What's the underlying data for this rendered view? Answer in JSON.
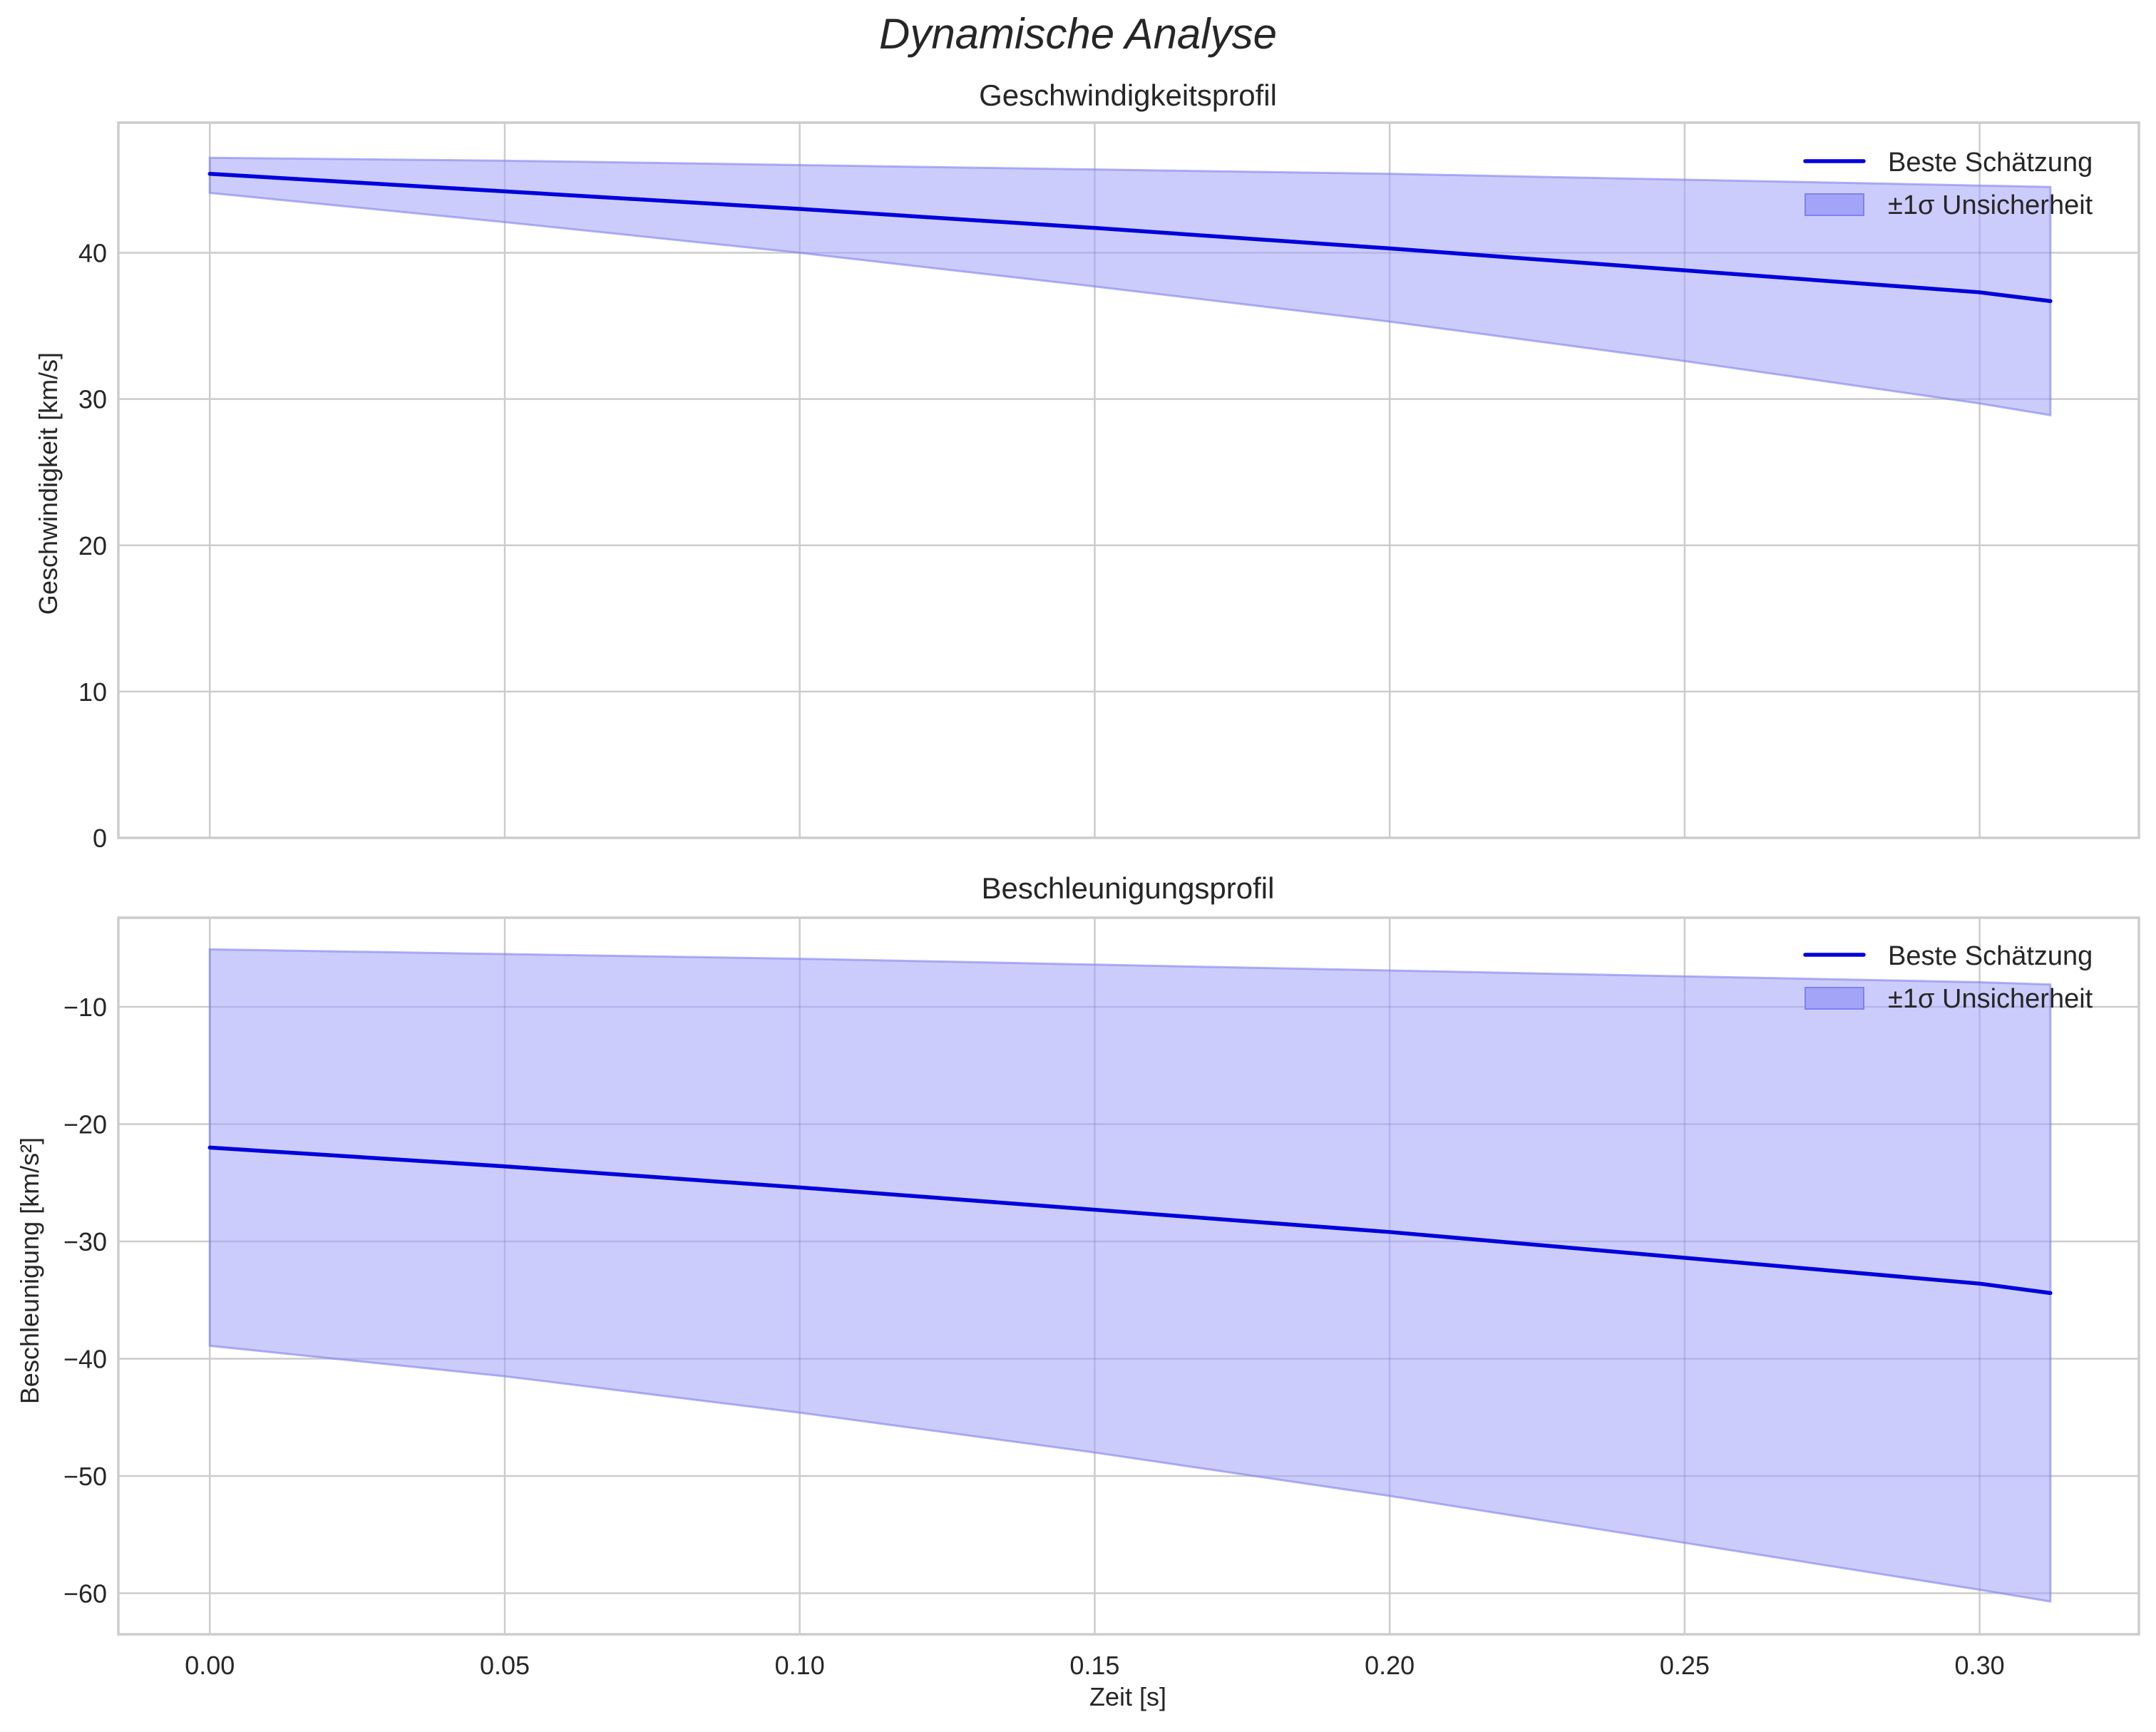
{
  "figure": {
    "title": "Dynamische Analyse"
  },
  "colors": {
    "line": "#0000dd",
    "band_fill": "#ccccfc",
    "band_edge": "#8080f0",
    "grid": "#cccccc",
    "text": "#262626",
    "background": "#ffffff"
  },
  "panels": [
    {
      "title": "Geschwindigkeitsprofil",
      "ylabel": "Geschwindigkeit [km/s]",
      "xlabel": "",
      "yticks": [
        "0",
        "10",
        "20",
        "30",
        "40"
      ],
      "legend": {
        "line_label": "Beste Schätzung",
        "band_label": "±1σ Unsicherheit"
      }
    },
    {
      "title": "Beschleunigungsprofil",
      "ylabel": "Beschleunigung [km/s²]",
      "xlabel": "Zeit [s]",
      "yticks": [
        "−10",
        "−20",
        "−30",
        "−40",
        "−50",
        "−60"
      ],
      "xticks": [
        "0.00",
        "0.05",
        "0.10",
        "0.15",
        "0.20",
        "0.25",
        "0.30"
      ],
      "legend": {
        "line_label": "Beste Schätzung",
        "band_label": "±1σ Unsicherheit"
      }
    }
  ],
  "chart_data": [
    {
      "type": "line",
      "title": "Geschwindigkeitsprofil",
      "suptitle": "Dynamische Analyse",
      "xlabel": "",
      "ylabel": "Geschwindigkeit [km/s]",
      "x": [
        0.0,
        0.05,
        0.1,
        0.15,
        0.2,
        0.25,
        0.3,
        0.312
      ],
      "series": [
        {
          "name": "Beste Schätzung",
          "kind": "line",
          "values": [
            45.4,
            44.2,
            43.0,
            41.7,
            40.3,
            38.8,
            37.3,
            36.7
          ]
        },
        {
          "name": "±1σ Unsicherheit (oben)",
          "kind": "band_upper",
          "values": [
            46.5,
            46.3,
            46.0,
            45.7,
            45.4,
            45.0,
            44.6,
            44.5
          ]
        },
        {
          "name": "±1σ Unsicherheit (unten)",
          "kind": "band_lower",
          "values": [
            44.1,
            42.1,
            40.0,
            37.7,
            35.3,
            32.6,
            29.7,
            28.9
          ]
        }
      ],
      "xlim": [
        -0.0155,
        0.327
      ],
      "ylim": [
        0,
        48.9
      ],
      "yticks": [
        0,
        10,
        20,
        30,
        40
      ],
      "xticks": [
        0.0,
        0.05,
        0.1,
        0.15,
        0.2,
        0.25,
        0.3
      ],
      "grid": true,
      "legend_position": "upper right"
    },
    {
      "type": "line",
      "title": "Beschleunigungsprofil",
      "xlabel": "Zeit [s]",
      "ylabel": "Beschleunigung [km/s²]",
      "x": [
        0.0,
        0.05,
        0.1,
        0.15,
        0.2,
        0.25,
        0.3,
        0.312
      ],
      "series": [
        {
          "name": "Beste Schätzung",
          "kind": "line",
          "values": [
            -22.0,
            -23.6,
            -25.4,
            -27.3,
            -29.2,
            -31.4,
            -33.6,
            -34.4
          ]
        },
        {
          "name": "±1σ Unsicherheit (oben)",
          "kind": "band_upper",
          "values": [
            -5.1,
            -5.5,
            -5.9,
            -6.4,
            -6.9,
            -7.4,
            -7.9,
            -8.1
          ]
        },
        {
          "name": "±1σ Unsicherheit (unten)",
          "kind": "band_lower",
          "values": [
            -38.9,
            -41.5,
            -44.6,
            -48.0,
            -51.7,
            -55.7,
            -59.7,
            -60.7
          ]
        }
      ],
      "xlim": [
        -0.0155,
        0.327
      ],
      "ylim": [
        -63.5,
        -2.4
      ],
      "yticks": [
        -60,
        -50,
        -40,
        -30,
        -20,
        -10
      ],
      "xticks": [
        0.0,
        0.05,
        0.1,
        0.15,
        0.2,
        0.25,
        0.3
      ],
      "grid": true,
      "legend_position": "upper right"
    }
  ]
}
